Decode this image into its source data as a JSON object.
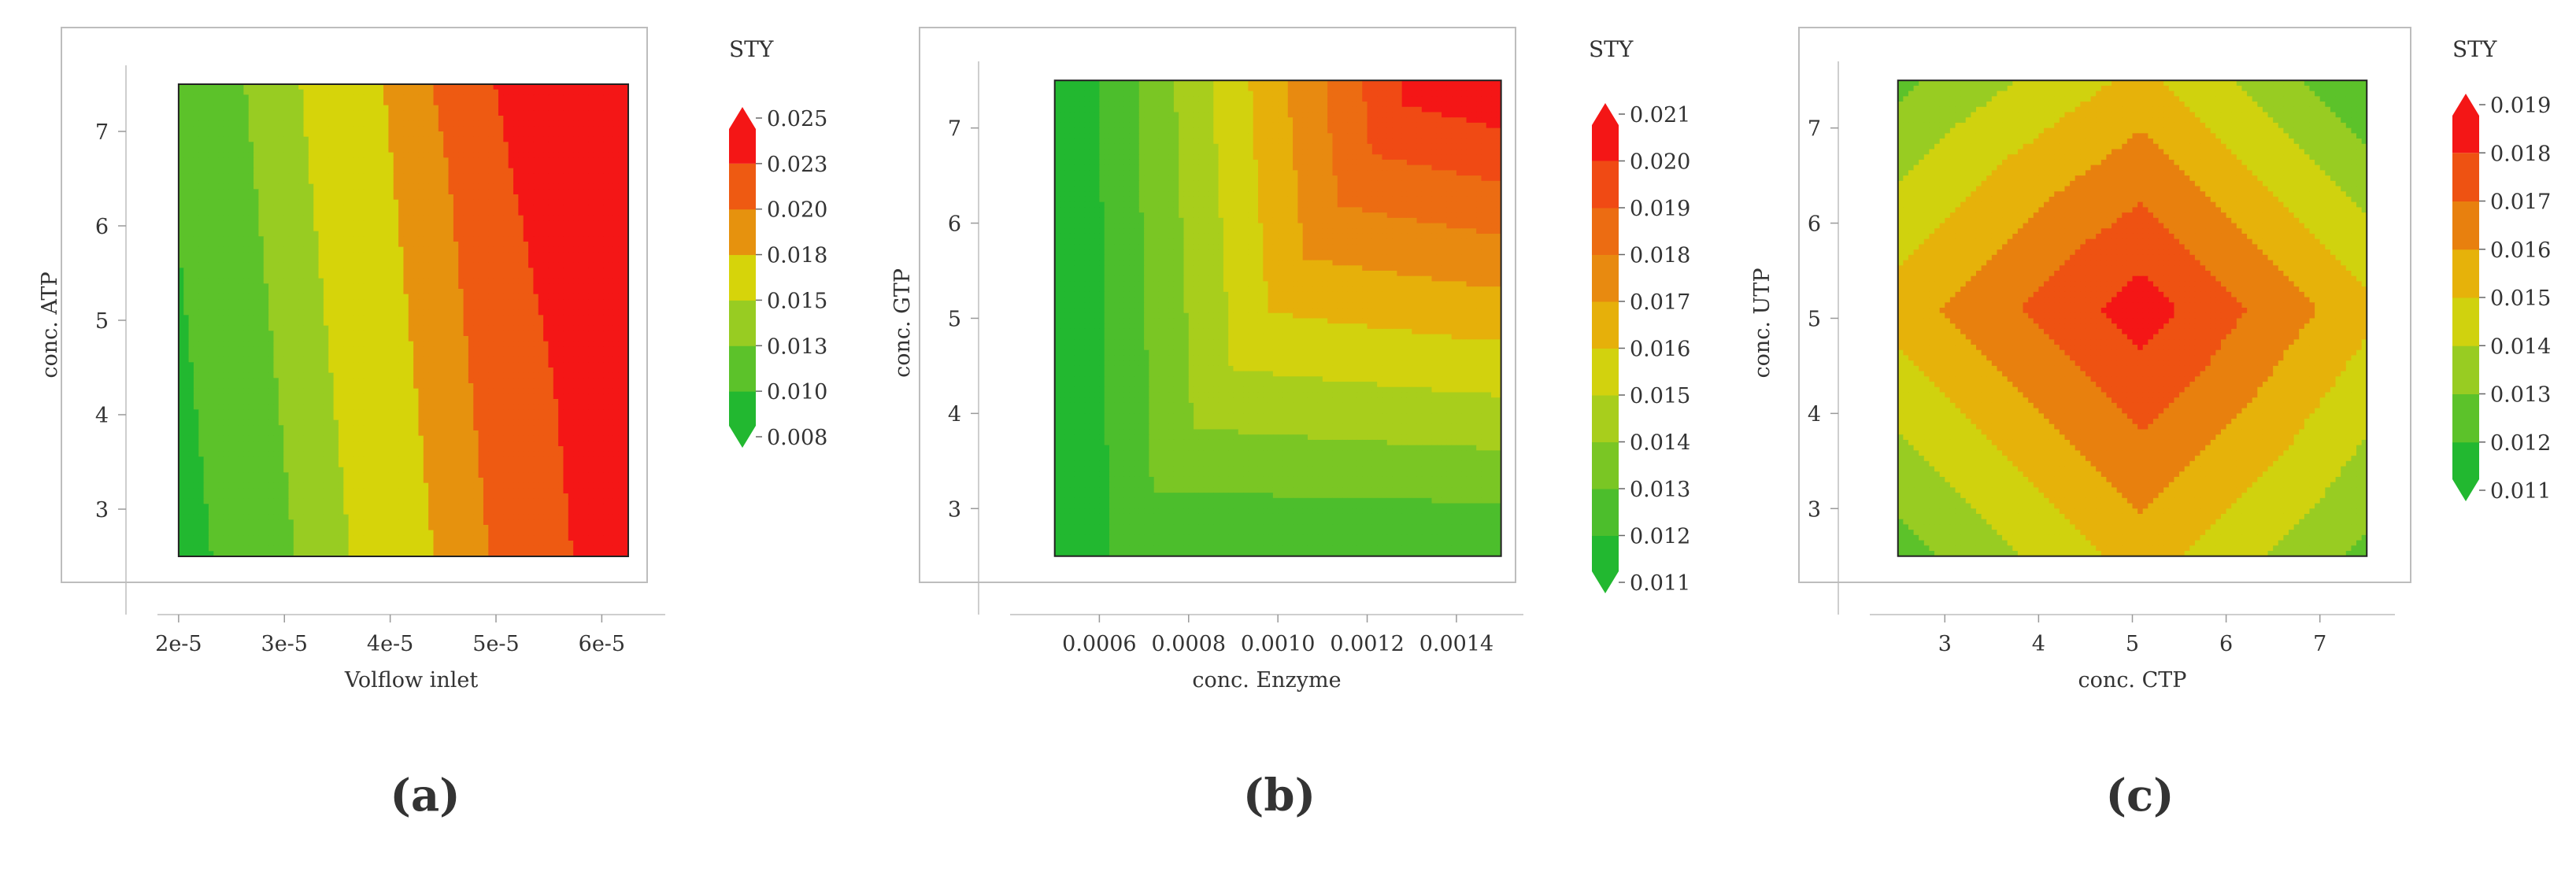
{
  "chart_data": [
    {
      "type": "heatmap",
      "panel_label": "(a)",
      "xlabel": "Volflow inlet",
      "ylabel": "conc. ATP",
      "legend_title": "STY",
      "xlim": [
        1.8e-05,
        6.6e-05
      ],
      "ylim": [
        2.2,
        7.7
      ],
      "data_xlim": [
        2e-05,
        6.25e-05
      ],
      "data_ylim": [
        2.5,
        7.5
      ],
      "x_ticks": [
        2e-05,
        3e-05,
        4e-05,
        5e-05,
        6e-05
      ],
      "x_tick_labels": [
        "2e-5",
        "3e-5",
        "4e-5",
        "5e-5",
        "6e-5"
      ],
      "y_ticks": [
        3,
        4,
        5,
        6,
        7
      ],
      "y_tick_labels": [
        "3",
        "4",
        "5",
        "6",
        "7"
      ],
      "levels": [
        0.008,
        0.01,
        0.013,
        0.015,
        0.018,
        0.02,
        0.023,
        0.025
      ],
      "level_labels": [
        "0.008",
        "0.010",
        "0.013",
        "0.015",
        "0.018",
        "0.020",
        "0.023",
        "0.025"
      ],
      "band_colors": [
        "#22b830",
        "#5cc22a",
        "#98cc22",
        "#d6d40a",
        "#e6920e",
        "#ee5a12",
        "#f41616"
      ],
      "model": {
        "kind": "linear-max",
        "a": 0.00362,
        "b": 0.00017,
        "c": -0.00082,
        "d": -0.0108,
        "k": 320
      },
      "grid": false
    },
    {
      "type": "heatmap",
      "panel_label": "(b)",
      "xlabel": "conc. Enzyme",
      "ylabel": "conc. GTP",
      "legend_title": "STY",
      "xlim": [
        0.0004,
        0.00155
      ],
      "ylim": [
        2.2,
        7.7
      ],
      "data_xlim": [
        0.0005,
        0.0015
      ],
      "data_ylim": [
        2.5,
        7.5
      ],
      "x_ticks": [
        0.0006,
        0.0008,
        0.001,
        0.0012,
        0.0014
      ],
      "x_tick_labels": [
        "0.0006",
        "0.0008",
        "0.0010",
        "0.0012",
        "0.0014"
      ],
      "y_ticks": [
        3,
        4,
        5,
        6,
        7
      ],
      "y_tick_labels": [
        "3",
        "4",
        "5",
        "6",
        "7"
      ],
      "levels": [
        0.011,
        0.012,
        0.013,
        0.014,
        0.015,
        0.016,
        0.017,
        0.018,
        0.019,
        0.02,
        0.021
      ],
      "level_labels": [
        "0.011",
        "0.012",
        "0.013",
        "0.014",
        "0.015",
        "0.016",
        "0.017",
        "0.018",
        "0.019",
        "0.020",
        "0.021"
      ],
      "band_colors": [
        "#22b830",
        "#4cbe2c",
        "#7ac624",
        "#a8ce1c",
        "#d2d20e",
        "#e6b00a",
        "#e88a10",
        "#ec6c12",
        "#f04a14",
        "#f41616"
      ],
      "model": {
        "kind": "min-corner",
        "base": 0.0108,
        "a": 0.0098,
        "b": 0.0068,
        "c": 0.0021
      },
      "grid": false
    },
    {
      "type": "heatmap",
      "panel_label": "(c)",
      "xlabel": "conc. CTP",
      "ylabel": "conc. UTP",
      "legend_title": "STY",
      "xlim": [
        2.2,
        7.8
      ],
      "ylim": [
        2.2,
        7.7
      ],
      "data_xlim": [
        2.5,
        7.5
      ],
      "data_ylim": [
        2.5,
        7.5
      ],
      "x_ticks": [
        3,
        4,
        5,
        6,
        7
      ],
      "x_tick_labels": [
        "3",
        "4",
        "5",
        "6",
        "7"
      ],
      "y_ticks": [
        3,
        4,
        5,
        6,
        7
      ],
      "y_tick_labels": [
        "3",
        "4",
        "5",
        "6",
        "7"
      ],
      "levels": [
        0.011,
        0.012,
        0.013,
        0.014,
        0.015,
        0.016,
        0.017,
        0.018,
        0.019
      ],
      "level_labels": [
        "0.011",
        "0.012",
        "0.013",
        "0.014",
        "0.015",
        "0.016",
        "0.017",
        "0.018",
        "0.019"
      ],
      "band_colors": [
        "#22b830",
        "#5cc22a",
        "#98cc22",
        "#d0d20e",
        "#e6b20a",
        "#e8800e",
        "#ee5212",
        "#f41616"
      ],
      "model": {
        "kind": "peak",
        "cx": 5.1,
        "cy": 5.1,
        "peak": 0.0185,
        "kx": 0.0021,
        "ky": 0.0021,
        "kd": 0.0006,
        "floor": 0.0105
      },
      "grid": false
    }
  ]
}
